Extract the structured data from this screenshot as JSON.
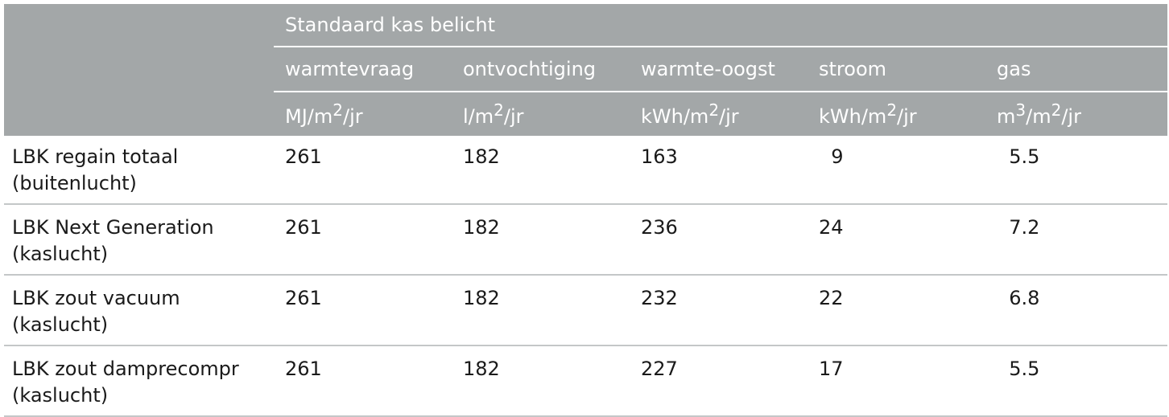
{
  "table": {
    "group_header": "Standaard kas belicht",
    "columns": [
      {
        "name": "warmtevraag",
        "unit_base": "MJ/m",
        "unit_sup": "2",
        "unit_tail": "/jr"
      },
      {
        "name": "ontvochtiging",
        "unit_base": "l/m",
        "unit_sup": "2",
        "unit_tail": "/jr"
      },
      {
        "name": "warmte-oogst",
        "unit_base": "kWh/m",
        "unit_sup": "2",
        "unit_tail": "/jr"
      },
      {
        "name": "stroom",
        "unit_base": "kWh/m",
        "unit_sup": "2",
        "unit_tail": "/jr"
      },
      {
        "name": "gas",
        "unit_base": "m",
        "unit_sup": "3",
        "unit_mid": "/m",
        "unit_sup2": "2",
        "unit_tail": "/jr"
      }
    ],
    "rows": [
      {
        "label_line1": "LBK regain totaal",
        "label_line2": "(buitenlucht)",
        "values": [
          "261",
          "182",
          "163",
          "  9",
          "  5.5"
        ]
      },
      {
        "label_line1": "LBK Next Generation",
        "label_line2": "(kaslucht)",
        "values": [
          "261",
          "182",
          "236",
          "24",
          "  7.2"
        ]
      },
      {
        "label_line1": "LBK zout vacuum",
        "label_line2": "(kaslucht)",
        "values": [
          "261",
          "182",
          "232",
          "22",
          "  6.8"
        ]
      },
      {
        "label_line1": "LBK zout damprecompr",
        "label_line2": "(kaslucht)",
        "values": [
          "261",
          "182",
          "227",
          "17",
          "  5.5"
        ]
      }
    ]
  }
}
